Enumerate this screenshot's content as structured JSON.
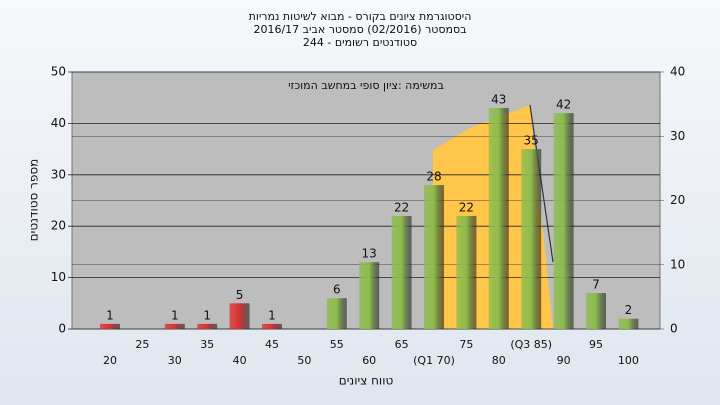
{
  "chart_data": {
    "type": "bar",
    "title": [
      "היסטוגרמת ציונים בקורס - מבוא לשיטות נמריות",
      "בסמסטר  (02/2016)  סמסטר אביב 2016/17",
      "סטודנטים רשומים - 244"
    ],
    "annotation": "במשימה :ציון סופי במחשב המוכזי",
    "x_label": "טווח ציונים",
    "y_label": "מספר סטודנטים",
    "categories": [
      "20",
      "25",
      "30",
      "35",
      "40",
      "45",
      "50",
      "55",
      "60",
      "65",
      "(Q1 70)",
      "75",
      "80",
      "(Q3 85)",
      "90",
      "95",
      "100"
    ],
    "values": [
      1,
      null,
      1,
      1,
      5,
      1,
      null,
      6,
      13,
      22,
      28,
      22,
      43,
      35,
      42,
      7,
      2
    ],
    "colors": [
      "#d93030",
      "#d93030",
      "#d93030",
      "#d93030",
      "#d93030",
      "#d93030",
      "#d93030",
      "#8cbc4c",
      "#8cbc4c",
      "#8cbc4c",
      "#8cbc4c",
      "#8cbc4c",
      "#8cbc4c",
      "#8cbc4c",
      "#8cbc4c",
      "#8cbc4c",
      "#8cbc4c"
    ],
    "ylim": [
      0,
      50
    ],
    "yticks": [
      0,
      10,
      20,
      30,
      40,
      50
    ],
    "y2lim": [
      0,
      40
    ],
    "y2ticks": [
      0,
      10,
      20,
      30,
      40
    ],
    "grid": true
  }
}
